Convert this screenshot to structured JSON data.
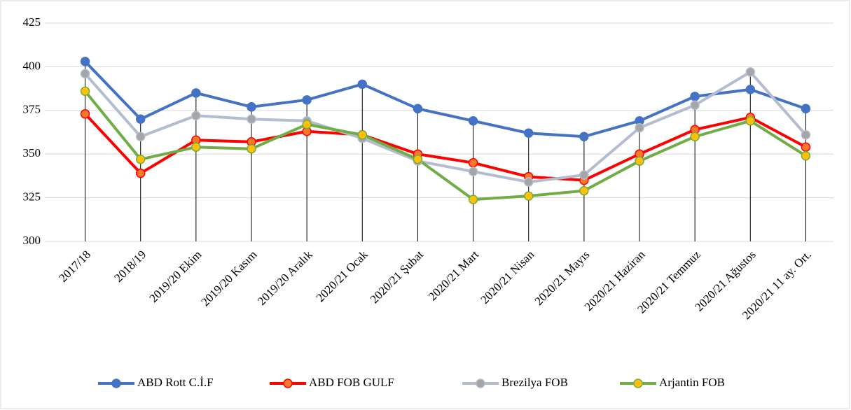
{
  "chart_data": {
    "type": "line",
    "categories": [
      "2017/18",
      "2018/19",
      "2019/20 Ekim",
      "2019/20 Kasım",
      "2019/20 Aralık",
      "2020/21 Ocak",
      "2020/21 Şubat",
      "2020/21 Mart",
      "2020/21 Nisan",
      "2020/21 Mayıs",
      "2020/21 Haziran",
      "2020/21 Temmuz",
      "2020/21 Ağustos",
      "2020/21 11 ay. Ort."
    ],
    "series": [
      {
        "name": "ABD Rott C.İ.F",
        "color": "#4472c4",
        "marker_color": "#4472c4",
        "values": [
          403,
          370,
          385,
          377,
          381,
          390,
          376,
          369,
          362,
          360,
          369,
          383,
          387,
          376
        ]
      },
      {
        "name": "ABD FOB GULF",
        "color": "#ff0000",
        "marker_color": "#f4792b",
        "values": [
          373,
          339,
          358,
          357,
          363,
          361,
          350,
          345,
          337,
          335,
          350,
          364,
          371,
          354
        ]
      },
      {
        "name": "Brezilya  FOB",
        "color": "#b4bccf",
        "marker_color": "#a5a5a5",
        "values": [
          396,
          360,
          372,
          370,
          369,
          359,
          346,
          340,
          334,
          338,
          365,
          378,
          397,
          361
        ]
      },
      {
        "name": "Arjantin  FOB",
        "color": "#70ad47",
        "marker_color": "#ffc000",
        "values": [
          386,
          347,
          354,
          353,
          367,
          361,
          347,
          324,
          326,
          329,
          346,
          360,
          369,
          349
        ]
      }
    ],
    "ylim": [
      300,
      425
    ],
    "yticks": [
      300,
      325,
      350,
      375,
      400,
      425
    ],
    "grid": true,
    "drop_lines": true,
    "legend": "bottom"
  }
}
